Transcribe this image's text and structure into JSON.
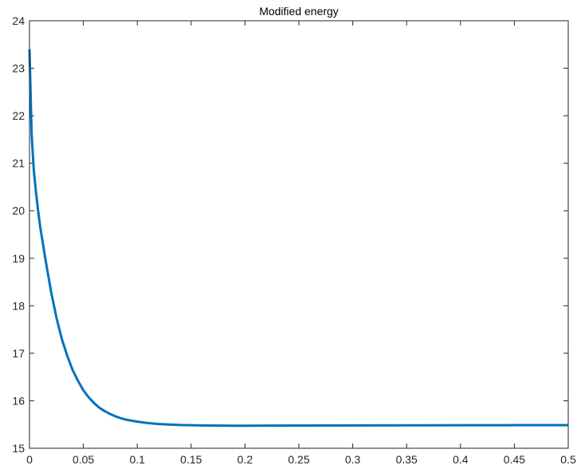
{
  "chart_data": {
    "type": "line",
    "title": "Modified energy",
    "xlabel": "",
    "ylabel": "",
    "xlim": [
      0,
      0.5
    ],
    "ylim": [
      15,
      24
    ],
    "xticks": [
      0,
      0.05,
      0.1,
      0.15,
      0.2,
      0.25,
      0.3,
      0.35,
      0.4,
      0.45,
      0.5
    ],
    "xtick_labels": [
      "0",
      "0.05",
      "0.1",
      "0.15",
      "0.2",
      "0.25",
      "0.3",
      "0.35",
      "0.4",
      "0.45",
      "0.5"
    ],
    "yticks": [
      15,
      16,
      17,
      18,
      19,
      20,
      21,
      22,
      23,
      24
    ],
    "ytick_labels": [
      "15",
      "16",
      "17",
      "18",
      "19",
      "20",
      "21",
      "22",
      "23",
      "24"
    ],
    "grid": false,
    "series": [
      {
        "color": "#0072BD",
        "x": [
          0,
          0.001,
          0.002,
          0.004,
          0.006,
          0.008,
          0.01,
          0.015,
          0.02,
          0.025,
          0.03,
          0.035,
          0.04,
          0.045,
          0.05,
          0.055,
          0.06,
          0.065,
          0.07,
          0.075,
          0.08,
          0.085,
          0.09,
          0.095,
          0.1,
          0.11,
          0.12,
          0.13,
          0.14,
          0.15,
          0.16,
          0.17,
          0.18,
          0.19,
          0.2,
          0.22,
          0.25,
          0.3,
          0.35,
          0.4,
          0.45,
          0.5
        ],
        "y": [
          23.4,
          22.5,
          21.6,
          20.85,
          20.4,
          20.0,
          19.65,
          18.95,
          18.3,
          17.75,
          17.3,
          16.95,
          16.65,
          16.42,
          16.22,
          16.07,
          15.95,
          15.85,
          15.78,
          15.72,
          15.67,
          15.63,
          15.6,
          15.58,
          15.56,
          15.53,
          15.51,
          15.5,
          15.49,
          15.485,
          15.48,
          15.478,
          15.476,
          15.475,
          15.475,
          15.476,
          15.478,
          15.48,
          15.482,
          15.484,
          15.486,
          15.488
        ]
      }
    ]
  }
}
